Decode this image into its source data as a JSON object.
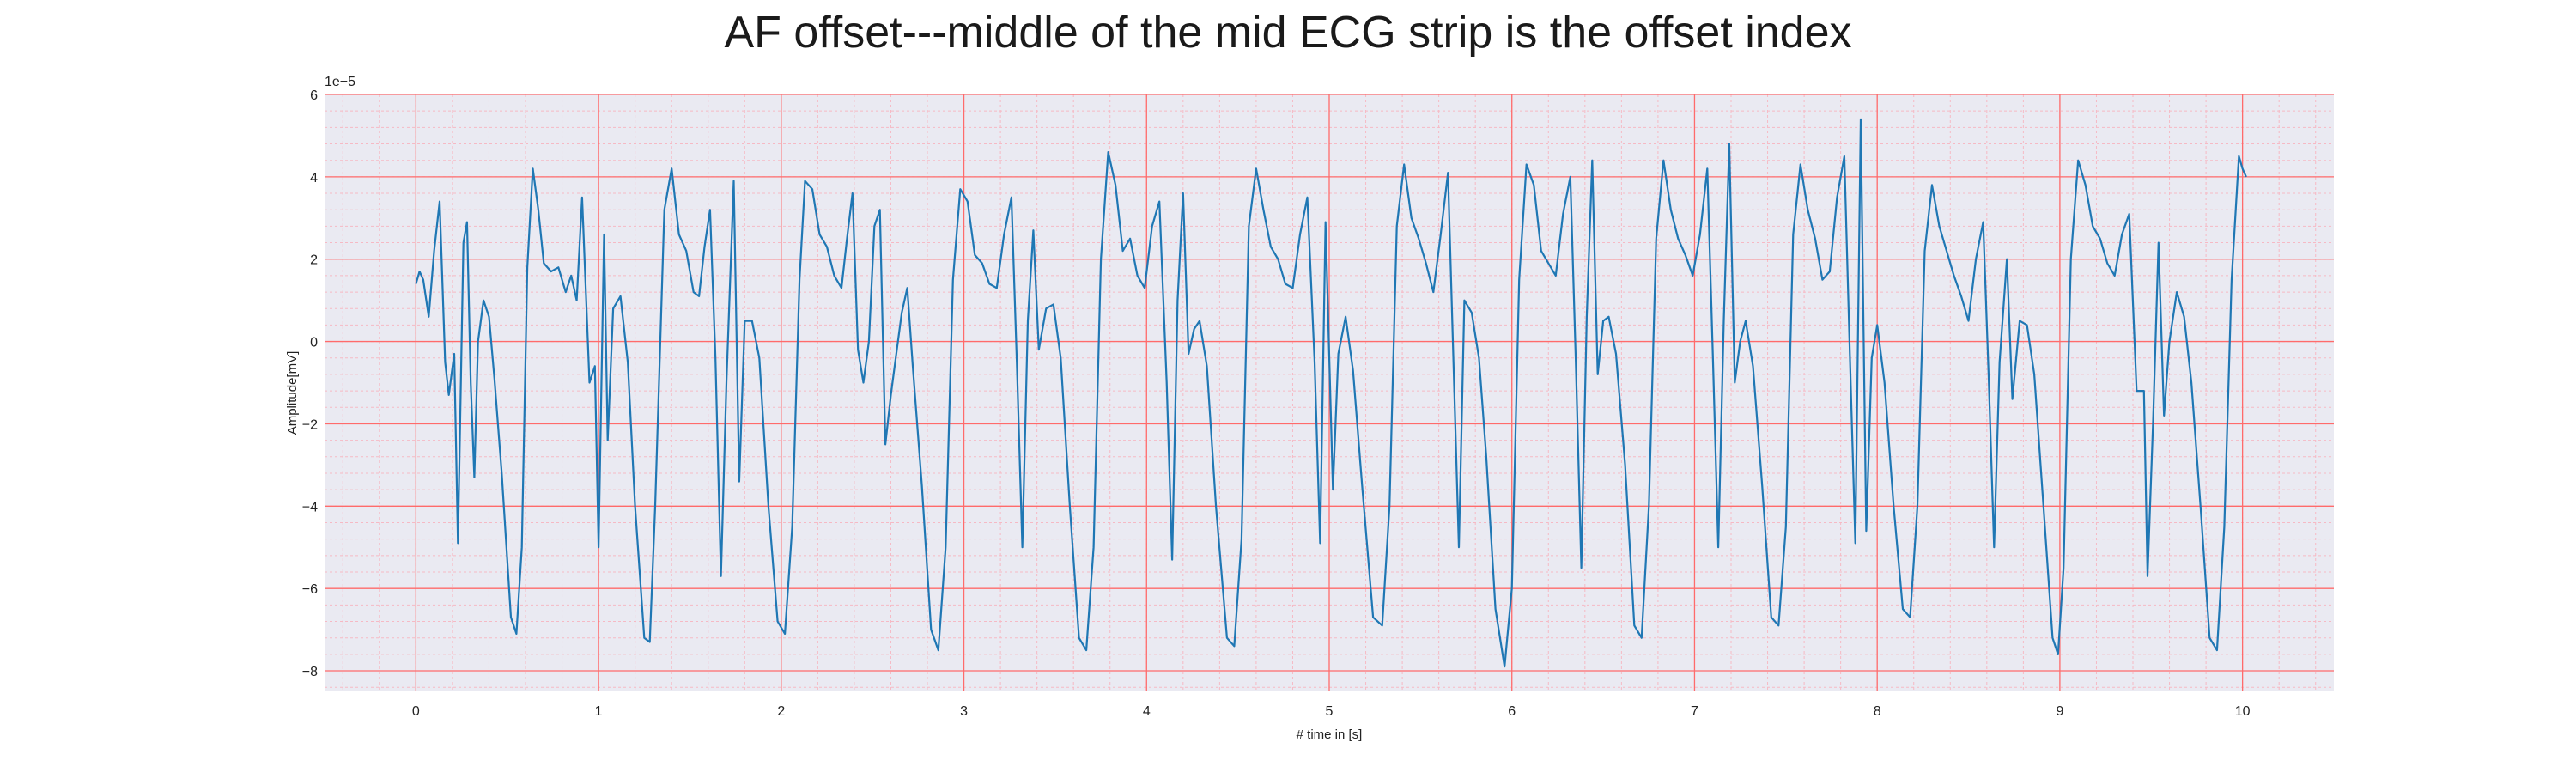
{
  "chart_data": {
    "type": "line",
    "title": "AF offset---middle of the mid ECG strip is the offset index",
    "xlabel": "# time in [s]",
    "ylabel": "Amplitude[mV]",
    "y_offset_label": "1e−5",
    "xlim": [
      -0.5,
      10.5
    ],
    "ylim": [
      -8.5,
      6
    ],
    "x_ticks": [
      0,
      1,
      2,
      3,
      4,
      5,
      6,
      7,
      8,
      9,
      10
    ],
    "y_ticks": [
      -8,
      -6,
      -4,
      -2,
      0,
      2,
      4,
      6
    ],
    "x_tick_labels": [
      "0",
      "1",
      "2",
      "3",
      "4",
      "5",
      "6",
      "7",
      "8",
      "9",
      "10"
    ],
    "y_tick_labels": [
      "−8",
      "−6",
      "−4",
      "−2",
      "0",
      "2",
      "4",
      "6"
    ],
    "grid": true,
    "minor_grid": true,
    "colors": {
      "background": "#eaeaf2",
      "major_grid": "#ff6b6b",
      "minor_grid": "#f6b9c4",
      "line": "#1f77b4"
    },
    "series": [
      {
        "points": [
          [
            0.0,
            1.4
          ],
          [
            0.02,
            1.7
          ],
          [
            0.04,
            1.5
          ],
          [
            0.07,
            0.6
          ],
          [
            0.1,
            2.2
          ],
          [
            0.13,
            3.4
          ],
          [
            0.16,
            -0.5
          ],
          [
            0.18,
            -1.3
          ],
          [
            0.21,
            -0.3
          ],
          [
            0.23,
            -4.9
          ],
          [
            0.26,
            2.4
          ],
          [
            0.28,
            2.9
          ],
          [
            0.3,
            -1.0
          ],
          [
            0.32,
            -3.3
          ],
          [
            0.34,
            0.0
          ],
          [
            0.37,
            1.0
          ],
          [
            0.4,
            0.6
          ],
          [
            0.43,
            -0.9
          ],
          [
            0.47,
            -3.2
          ],
          [
            0.52,
            -6.7
          ],
          [
            0.55,
            -7.1
          ],
          [
            0.58,
            -5.0
          ],
          [
            0.61,
            1.8
          ],
          [
            0.64,
            4.2
          ],
          [
            0.67,
            3.2
          ],
          [
            0.7,
            1.9
          ],
          [
            0.74,
            1.7
          ],
          [
            0.78,
            1.8
          ],
          [
            0.82,
            1.2
          ],
          [
            0.85,
            1.6
          ],
          [
            0.88,
            1.0
          ],
          [
            0.91,
            3.5
          ],
          [
            0.95,
            -1.0
          ],
          [
            0.98,
            -0.6
          ],
          [
            1.0,
            -5.0
          ],
          [
            1.03,
            2.6
          ],
          [
            1.05,
            -2.4
          ],
          [
            1.08,
            0.8
          ],
          [
            1.12,
            1.1
          ],
          [
            1.16,
            -0.5
          ],
          [
            1.2,
            -4.0
          ],
          [
            1.25,
            -7.2
          ],
          [
            1.28,
            -7.3
          ],
          [
            1.31,
            -4.0
          ],
          [
            1.36,
            3.2
          ],
          [
            1.4,
            4.2
          ],
          [
            1.44,
            2.6
          ],
          [
            1.48,
            2.2
          ],
          [
            1.52,
            1.2
          ],
          [
            1.55,
            1.1
          ],
          [
            1.58,
            2.3
          ],
          [
            1.61,
            3.2
          ],
          [
            1.64,
            -0.4
          ],
          [
            1.67,
            -5.7
          ],
          [
            1.7,
            -1.0
          ],
          [
            1.74,
            3.9
          ],
          [
            1.77,
            -3.4
          ],
          [
            1.8,
            0.5
          ],
          [
            1.84,
            0.5
          ],
          [
            1.88,
            -0.4
          ],
          [
            1.93,
            -4.0
          ],
          [
            1.98,
            -6.8
          ],
          [
            2.02,
            -7.1
          ],
          [
            2.06,
            -4.5
          ],
          [
            2.1,
            1.5
          ],
          [
            2.13,
            3.9
          ],
          [
            2.17,
            3.7
          ],
          [
            2.21,
            2.6
          ],
          [
            2.25,
            2.3
          ],
          [
            2.29,
            1.6
          ],
          [
            2.33,
            1.3
          ],
          [
            2.36,
            2.5
          ],
          [
            2.39,
            3.6
          ],
          [
            2.42,
            -0.2
          ],
          [
            2.45,
            -1.0
          ],
          [
            2.48,
            0.0
          ],
          [
            2.51,
            2.8
          ],
          [
            2.54,
            3.2
          ],
          [
            2.57,
            -2.5
          ],
          [
            2.6,
            -1.3
          ],
          [
            2.63,
            -0.3
          ],
          [
            2.66,
            0.7
          ],
          [
            2.69,
            1.3
          ],
          [
            2.72,
            -0.6
          ],
          [
            2.77,
            -3.5
          ],
          [
            2.82,
            -7.0
          ],
          [
            2.86,
            -7.5
          ],
          [
            2.9,
            -5.0
          ],
          [
            2.94,
            1.5
          ],
          [
            2.98,
            3.7
          ],
          [
            3.02,
            3.4
          ],
          [
            3.06,
            2.1
          ],
          [
            3.1,
            1.9
          ],
          [
            3.14,
            1.4
          ],
          [
            3.18,
            1.3
          ],
          [
            3.22,
            2.6
          ],
          [
            3.26,
            3.5
          ],
          [
            3.29,
            -0.5
          ],
          [
            3.32,
            -5.0
          ],
          [
            3.35,
            0.5
          ],
          [
            3.38,
            2.7
          ],
          [
            3.41,
            -0.2
          ],
          [
            3.45,
            0.8
          ],
          [
            3.49,
            0.9
          ],
          [
            3.53,
            -0.4
          ],
          [
            3.58,
            -4.0
          ],
          [
            3.63,
            -7.2
          ],
          [
            3.67,
            -7.5
          ],
          [
            3.71,
            -5.0
          ],
          [
            3.75,
            2.0
          ],
          [
            3.79,
            4.6
          ],
          [
            3.83,
            3.8
          ],
          [
            3.87,
            2.2
          ],
          [
            3.91,
            2.5
          ],
          [
            3.95,
            1.6
          ],
          [
            3.99,
            1.3
          ],
          [
            4.03,
            2.8
          ],
          [
            4.07,
            3.4
          ],
          [
            4.11,
            -1.0
          ],
          [
            4.14,
            -5.3
          ],
          [
            4.17,
            1.0
          ],
          [
            4.2,
            3.6
          ],
          [
            4.23,
            -0.3
          ],
          [
            4.26,
            0.3
          ],
          [
            4.29,
            0.5
          ],
          [
            4.33,
            -0.6
          ],
          [
            4.38,
            -4.0
          ],
          [
            4.44,
            -7.2
          ],
          [
            4.48,
            -7.4
          ],
          [
            4.52,
            -4.8
          ],
          [
            4.56,
            2.8
          ],
          [
            4.6,
            4.2
          ],
          [
            4.64,
            3.2
          ],
          [
            4.68,
            2.3
          ],
          [
            4.72,
            2.0
          ],
          [
            4.76,
            1.4
          ],
          [
            4.8,
            1.3
          ],
          [
            4.84,
            2.6
          ],
          [
            4.88,
            3.5
          ],
          [
            4.92,
            -0.5
          ],
          [
            4.95,
            -4.9
          ],
          [
            4.98,
            2.9
          ],
          [
            5.02,
            -3.6
          ],
          [
            5.05,
            -0.3
          ],
          [
            5.09,
            0.6
          ],
          [
            5.13,
            -0.7
          ],
          [
            5.18,
            -3.5
          ],
          [
            5.24,
            -6.7
          ],
          [
            5.29,
            -6.9
          ],
          [
            5.33,
            -4.0
          ],
          [
            5.37,
            2.8
          ],
          [
            5.41,
            4.3
          ],
          [
            5.45,
            3.0
          ],
          [
            5.49,
            2.5
          ],
          [
            5.53,
            1.9
          ],
          [
            5.57,
            1.2
          ],
          [
            5.61,
            2.6
          ],
          [
            5.65,
            4.1
          ],
          [
            5.68,
            -0.5
          ],
          [
            5.71,
            -5.0
          ],
          [
            5.74,
            1.0
          ],
          [
            5.78,
            0.7
          ],
          [
            5.82,
            -0.4
          ],
          [
            5.86,
            -2.8
          ],
          [
            5.91,
            -6.5
          ],
          [
            5.96,
            -7.9
          ],
          [
            6.0,
            -6.0
          ],
          [
            6.04,
            1.5
          ],
          [
            6.08,
            4.3
          ],
          [
            6.12,
            3.8
          ],
          [
            6.16,
            2.2
          ],
          [
            6.2,
            1.9
          ],
          [
            6.24,
            1.6
          ],
          [
            6.28,
            3.1
          ],
          [
            6.32,
            4.0
          ],
          [
            6.35,
            -0.5
          ],
          [
            6.38,
            -5.5
          ],
          [
            6.41,
            0.6
          ],
          [
            6.44,
            4.4
          ],
          [
            6.47,
            -0.8
          ],
          [
            6.5,
            0.5
          ],
          [
            6.53,
            0.6
          ],
          [
            6.57,
            -0.3
          ],
          [
            6.62,
            -3.0
          ],
          [
            6.67,
            -6.9
          ],
          [
            6.71,
            -7.2
          ],
          [
            6.75,
            -4.0
          ],
          [
            6.79,
            2.5
          ],
          [
            6.83,
            4.4
          ],
          [
            6.87,
            3.2
          ],
          [
            6.91,
            2.5
          ],
          [
            6.95,
            2.1
          ],
          [
            6.99,
            1.6
          ],
          [
            7.03,
            2.6
          ],
          [
            7.07,
            4.2
          ],
          [
            7.1,
            -0.3
          ],
          [
            7.13,
            -5.0
          ],
          [
            7.16,
            0.5
          ],
          [
            7.19,
            4.8
          ],
          [
            7.22,
            -1.0
          ],
          [
            7.25,
            0.0
          ],
          [
            7.28,
            0.5
          ],
          [
            7.32,
            -0.6
          ],
          [
            7.37,
            -3.5
          ],
          [
            7.42,
            -6.7
          ],
          [
            7.46,
            -6.9
          ],
          [
            7.5,
            -4.5
          ],
          [
            7.54,
            2.6
          ],
          [
            7.58,
            4.3
          ],
          [
            7.62,
            3.2
          ],
          [
            7.66,
            2.5
          ],
          [
            7.7,
            1.5
          ],
          [
            7.74,
            1.7
          ],
          [
            7.78,
            3.5
          ],
          [
            7.82,
            4.5
          ],
          [
            7.85,
            -0.3
          ],
          [
            7.88,
            -4.9
          ],
          [
            7.91,
            5.4
          ],
          [
            7.94,
            -4.6
          ],
          [
            7.97,
            -0.4
          ],
          [
            8.0,
            0.4
          ],
          [
            8.04,
            -1.0
          ],
          [
            8.09,
            -4.0
          ],
          [
            8.14,
            -6.5
          ],
          [
            8.18,
            -6.7
          ],
          [
            8.22,
            -4.0
          ],
          [
            8.26,
            2.2
          ],
          [
            8.3,
            3.8
          ],
          [
            8.34,
            2.8
          ],
          [
            8.38,
            2.2
          ],
          [
            8.42,
            1.6
          ],
          [
            8.46,
            1.1
          ],
          [
            8.5,
            0.5
          ],
          [
            8.54,
            2.0
          ],
          [
            8.58,
            2.9
          ],
          [
            8.61,
            -0.8
          ],
          [
            8.64,
            -5.0
          ],
          [
            8.67,
            -0.5
          ],
          [
            8.71,
            2.0
          ],
          [
            8.74,
            -1.4
          ],
          [
            8.78,
            0.5
          ],
          [
            8.82,
            0.4
          ],
          [
            8.86,
            -0.8
          ],
          [
            8.91,
            -4.0
          ],
          [
            8.96,
            -7.2
          ],
          [
            8.99,
            -7.6
          ],
          [
            9.02,
            -5.5
          ],
          [
            9.06,
            2.0
          ],
          [
            9.1,
            4.4
          ],
          [
            9.14,
            3.8
          ],
          [
            9.18,
            2.8
          ],
          [
            9.22,
            2.5
          ],
          [
            9.26,
            1.9
          ],
          [
            9.3,
            1.6
          ],
          [
            9.34,
            2.6
          ],
          [
            9.38,
            3.1
          ],
          [
            9.42,
            -1.2
          ],
          [
            9.46,
            -1.2
          ],
          [
            9.48,
            -5.7
          ],
          [
            9.51,
            -2.0
          ],
          [
            9.54,
            2.4
          ],
          [
            9.57,
            -1.8
          ],
          [
            9.6,
            0.0
          ],
          [
            9.64,
            1.2
          ],
          [
            9.68,
            0.6
          ],
          [
            9.72,
            -1.0
          ],
          [
            9.77,
            -4.0
          ],
          [
            9.82,
            -7.2
          ],
          [
            9.86,
            -7.5
          ],
          [
            9.9,
            -4.5
          ],
          [
            9.94,
            1.5
          ],
          [
            9.98,
            4.5
          ],
          [
            10.0,
            4.2
          ],
          [
            10.02,
            4.0
          ]
        ]
      }
    ]
  }
}
